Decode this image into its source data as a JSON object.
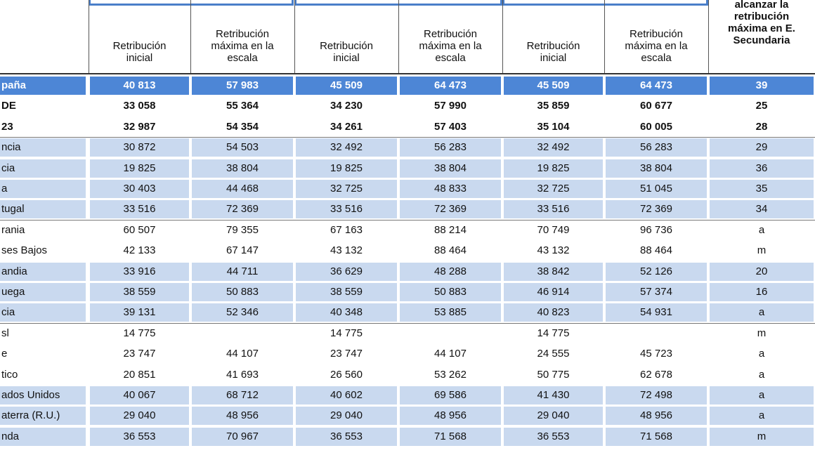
{
  "header": {
    "group_col_1": [
      "Retribución",
      "inicial"
    ],
    "group_col_2": [
      "Retribución",
      "máxima en la",
      "escala"
    ],
    "group_col_3": [
      "Retribución",
      "inicial"
    ],
    "group_col_4": [
      "Retribución",
      "máxima en la",
      "escala"
    ],
    "group_col_5": [
      "Retribución",
      "inicial"
    ],
    "group_col_6": [
      "Retribución",
      "máxima en la",
      "escala"
    ],
    "last_col": [
      "alcanzar la",
      "retribución",
      "máxima en E.",
      "Secundaria"
    ]
  },
  "rows": [
    {
      "name": "paña",
      "v": [
        "40 813",
        "57 983",
        "45 509",
        "64 473",
        "45 509",
        "64 473",
        "39"
      ],
      "style": "hl"
    },
    {
      "name": "DE",
      "v": [
        "33 058",
        "55 364",
        "34 230",
        "57 990",
        "35 859",
        "60 677",
        "25"
      ],
      "style": "bold"
    },
    {
      "name": "23",
      "v": [
        "32 987",
        "54 354",
        "34 261",
        "57 403",
        "35 104",
        "60 005",
        "28"
      ],
      "style": "bold"
    },
    {
      "name": "ncia",
      "v": [
        "30 872",
        "54 503",
        "32 492",
        "56 283",
        "32 492",
        "56 283",
        "29"
      ],
      "style": "shade"
    },
    {
      "name": "cia",
      "v": [
        "19 825",
        "38 804",
        "19 825",
        "38 804",
        "19 825",
        "38 804",
        "36"
      ],
      "style": "shade"
    },
    {
      "name": "a",
      "v": [
        "30 403",
        "44 468",
        "32 725",
        "48 833",
        "32 725",
        "51 045",
        "35"
      ],
      "style": "shade"
    },
    {
      "name": "tugal",
      "v": [
        "33 516",
        "72 369",
        "33 516",
        "72 369",
        "33 516",
        "72 369",
        "34"
      ],
      "style": "shade"
    },
    {
      "name": "rania",
      "v": [
        "60 507",
        "79 355",
        "67 163",
        "88 214",
        "70 749",
        "96 736",
        "a"
      ],
      "style": "plain"
    },
    {
      "name": "ses Bajos",
      "v": [
        "42 133",
        "67 147",
        "43 132",
        "88 464",
        "43 132",
        "88 464",
        "m"
      ],
      "style": "plain"
    },
    {
      "name": "andia",
      "v": [
        "33 916",
        "44 711",
        "36 629",
        "48 288",
        "38 842",
        "52 126",
        "20"
      ],
      "style": "shade"
    },
    {
      "name": "uega",
      "v": [
        "38 559",
        "50 883",
        "38 559",
        "50 883",
        "46 914",
        "57 374",
        "16"
      ],
      "style": "shade"
    },
    {
      "name": "cia",
      "v": [
        "39 131",
        "52 346",
        "40 348",
        "53 885",
        "40 823",
        "54 931",
        "a"
      ],
      "style": "shade"
    },
    {
      "name": "sl",
      "v": [
        "14 775",
        "",
        "14 775",
        "",
        "14 775",
        "",
        "m"
      ],
      "style": "plain"
    },
    {
      "name": "e",
      "v": [
        "23 747",
        "44 107",
        "23 747",
        "44 107",
        "24 555",
        "45 723",
        "a"
      ],
      "style": "plain"
    },
    {
      "name": "tico",
      "v": [
        "20 851",
        "41 693",
        "26 560",
        "53 262",
        "50 775",
        "62 678",
        "a"
      ],
      "style": "plain"
    },
    {
      "name": "ados Unidos",
      "v": [
        "40 067",
        "68 712",
        "40 602",
        "69 586",
        "41 430",
        "72 498",
        "a"
      ],
      "style": "shade"
    },
    {
      "name": "aterra (R.U.)",
      "v": [
        "29 040",
        "48 956",
        "29 040",
        "48 956",
        "29 040",
        "48 956",
        "a"
      ],
      "style": "shade"
    },
    {
      "name": "nda",
      "v": [
        "36 553",
        "70 967",
        "36 553",
        "71 568",
        "36 553",
        "71 568",
        "m"
      ],
      "style": "shade"
    }
  ],
  "colors": {
    "highlight": "#4d86d6",
    "shade": "#c9d9ef",
    "group_border": "#4a7fc9"
  }
}
